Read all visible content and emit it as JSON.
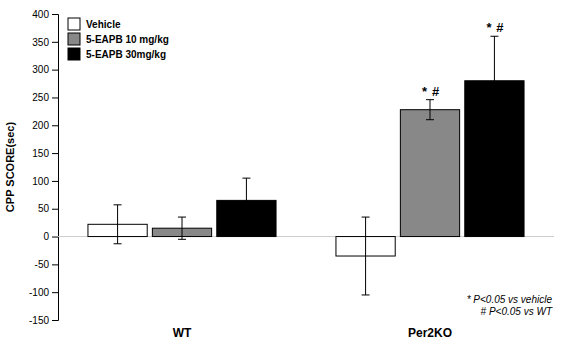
{
  "chart_data": {
    "type": "bar",
    "categories": [
      "WT",
      "Per2KO"
    ],
    "series": [
      {
        "name": "Vehicle",
        "color": "white",
        "values": [
          22,
          -35
        ],
        "errors": [
          35,
          70
        ]
      },
      {
        "name": "5-EAPB 10 mg/kg",
        "color": "#888888",
        "values": [
          15,
          228
        ],
        "errors": [
          20,
          18
        ]
      },
      {
        "name": "5-EAPB 30mg/kg",
        "color": "black",
        "values": [
          65,
          280
        ],
        "errors": [
          40,
          80
        ]
      }
    ],
    "ylabel": "CPP SCORE(sec)",
    "ylim": [
      -150,
      400
    ],
    "yticks": [
      -150,
      -100,
      -50,
      0,
      50,
      100,
      150,
      200,
      250,
      300,
      350,
      400
    ],
    "legend": "upper left",
    "annotations": [
      {
        "text": "*",
        "category": "Per2KO",
        "series": "5-EAPB 10 mg/kg"
      },
      {
        "text": "#",
        "category": "Per2KO",
        "series": "5-EAPB 10 mg/kg"
      },
      {
        "text": "*",
        "category": "Per2KO",
        "series": "5-EAPB 30mg/kg"
      },
      {
        "text": "#",
        "category": "Per2KO",
        "series": "5-EAPB 30mg/kg"
      }
    ],
    "footnotes": [
      "* P<0.05 vs vehicle",
      "# P<0.05 vs WT"
    ]
  }
}
